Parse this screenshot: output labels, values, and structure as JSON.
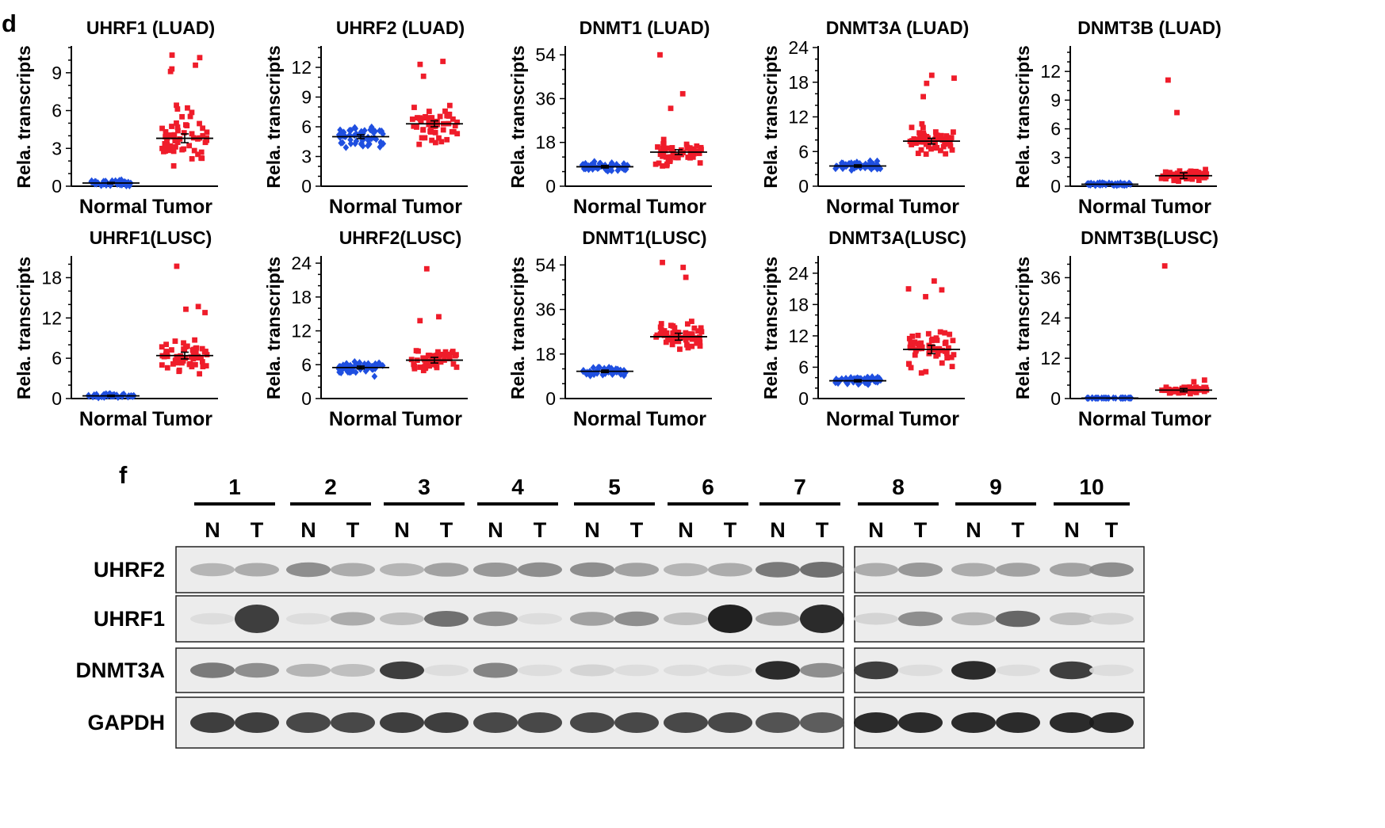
{
  "panels": {
    "d": {
      "label": "d"
    },
    "f": {
      "label": "f"
    }
  },
  "colors": {
    "normal": "#1f4fe0",
    "tumor": "#ef1c2a",
    "axis": "#000000"
  },
  "chart_data": [
    {
      "type": "scatter",
      "title": "UHRF1 (LUAD)",
      "ylabel": "Rela. transcripts",
      "categories": [
        "Normal",
        "Tumor"
      ],
      "ylim": [
        0,
        11
      ],
      "yticks": [
        0,
        3,
        6,
        9
      ],
      "series": [
        {
          "name": "Normal",
          "mean": 0.25,
          "sem": 0.05,
          "spread": 0.35,
          "n": 40,
          "seed": 11
        },
        {
          "name": "Tumor",
          "mean": 3.8,
          "sem": 0.35,
          "spread": 2.9,
          "n": 58,
          "seed": 12,
          "outliers": [
            10.4,
            10.2,
            9.6,
            9.3,
            9.1
          ]
        }
      ]
    },
    {
      "type": "scatter",
      "title": "UHRF2 (LUAD)",
      "ylabel": "Rela. transcripts",
      "categories": [
        "Normal",
        "Tumor"
      ],
      "ylim": [
        0,
        14
      ],
      "yticks": [
        0,
        3,
        6,
        9,
        12
      ],
      "series": [
        {
          "name": "Normal",
          "mean": 5.0,
          "sem": 0.2,
          "spread": 1.1,
          "n": 55,
          "seed": 21
        },
        {
          "name": "Tumor",
          "mean": 6.3,
          "sem": 0.3,
          "spread": 2.0,
          "n": 55,
          "seed": 22,
          "outliers": [
            12.6,
            12.3,
            11.1
          ]
        }
      ]
    },
    {
      "type": "scatter",
      "title": "DNMT1 (LUAD)",
      "ylabel": "Rela. transcripts",
      "categories": [
        "Normal",
        "Tumor"
      ],
      "ylim": [
        0,
        57
      ],
      "yticks": [
        0,
        18,
        36,
        54
      ],
      "series": [
        {
          "name": "Normal",
          "mean": 8.0,
          "sem": 0.5,
          "spread": 2.2,
          "n": 50,
          "seed": 31
        },
        {
          "name": "Tumor",
          "mean": 14.0,
          "sem": 1.0,
          "spread": 5.5,
          "n": 55,
          "seed": 32,
          "outliers": [
            54,
            38,
            32
          ]
        }
      ]
    },
    {
      "type": "scatter",
      "title": "DNMT3A (LUAD)",
      "ylabel": "Rela. transcripts",
      "categories": [
        "Normal",
        "Tumor"
      ],
      "ylim": [
        0,
        24
      ],
      "yticks": [
        0,
        6,
        12,
        18,
        24
      ],
      "series": [
        {
          "name": "Normal",
          "mean": 3.5,
          "sem": 0.2,
          "spread": 1.0,
          "n": 55,
          "seed": 41
        },
        {
          "name": "Tumor",
          "mean": 7.8,
          "sem": 0.5,
          "spread": 2.8,
          "n": 55,
          "seed": 42,
          "outliers": [
            19.2,
            18.7,
            17.8,
            15.5
          ]
        }
      ]
    },
    {
      "type": "scatter",
      "title": "DNMT3B (LUAD)",
      "ylabel": "Rela. transcripts",
      "categories": [
        "Normal",
        "Tumor"
      ],
      "ylim": [
        0,
        14.5
      ],
      "yticks": [
        0,
        3,
        6,
        9,
        12
      ],
      "series": [
        {
          "name": "Normal",
          "mean": 0.2,
          "sem": 0.03,
          "spread": 0.2,
          "n": 40,
          "seed": 51
        },
        {
          "name": "Tumor",
          "mean": 1.1,
          "sem": 0.3,
          "spread": 0.8,
          "n": 50,
          "seed": 52,
          "outliers": [
            11.1,
            7.7
          ]
        }
      ]
    },
    {
      "type": "scatter",
      "title": "UHRF1(LUSC)",
      "ylabel": "Rela. transcripts",
      "categories": [
        "Normal",
        "Tumor"
      ],
      "ylim": [
        0,
        21
      ],
      "yticks": [
        0,
        6,
        12,
        18
      ],
      "series": [
        {
          "name": "Normal",
          "mean": 0.4,
          "sem": 0.1,
          "spread": 0.4,
          "n": 40,
          "seed": 61
        },
        {
          "name": "Tumor",
          "mean": 6.4,
          "sem": 0.5,
          "spread": 2.6,
          "n": 55,
          "seed": 62,
          "outliers": [
            19.7,
            13.7,
            13.3,
            12.8
          ]
        }
      ]
    },
    {
      "type": "scatter",
      "title": "UHRF2(LUSC)",
      "ylabel": "Rela. transcripts",
      "categories": [
        "Normal",
        "Tumor"
      ],
      "ylim": [
        0,
        25
      ],
      "yticks": [
        0,
        6,
        12,
        18,
        24
      ],
      "series": [
        {
          "name": "Normal",
          "mean": 5.5,
          "sem": 0.25,
          "spread": 1.4,
          "n": 55,
          "seed": 71
        },
        {
          "name": "Tumor",
          "mean": 6.8,
          "sem": 0.5,
          "spread": 2.4,
          "n": 50,
          "seed": 72,
          "outliers": [
            23.0,
            14.5,
            13.8
          ]
        }
      ]
    },
    {
      "type": "scatter",
      "title": "DNMT1(LUSC)",
      "ylabel": "Rela. transcripts",
      "categories": [
        "Normal",
        "Tumor"
      ],
      "ylim": [
        0,
        57
      ],
      "yticks": [
        0,
        18,
        36,
        54
      ],
      "series": [
        {
          "name": "Normal",
          "mean": 11.0,
          "sem": 0.5,
          "spread": 2.5,
          "n": 50,
          "seed": 81
        },
        {
          "name": "Tumor",
          "mean": 25.0,
          "sem": 1.4,
          "spread": 7.0,
          "n": 55,
          "seed": 82,
          "outliers": [
            55,
            53,
            49
          ]
        }
      ]
    },
    {
      "type": "scatter",
      "title": "DNMT3A(LUSC)",
      "ylabel": "Rela. transcripts",
      "categories": [
        "Normal",
        "Tumor"
      ],
      "ylim": [
        0,
        27
      ],
      "yticks": [
        0,
        6,
        12,
        18,
        24
      ],
      "series": [
        {
          "name": "Normal",
          "mean": 3.4,
          "sem": 0.2,
          "spread": 0.9,
          "n": 55,
          "seed": 91
        },
        {
          "name": "Tumor",
          "mean": 9.4,
          "sem": 0.8,
          "spread": 4.3,
          "n": 55,
          "seed": 92,
          "outliers": [
            22.5,
            21.0,
            20.8,
            19.5
          ]
        }
      ]
    },
    {
      "type": "scatter",
      "title": "DNMT3B(LUSC)",
      "ylabel": "Rela. transcripts",
      "categories": [
        "Normal",
        "Tumor"
      ],
      "ylim": [
        0,
        42
      ],
      "yticks": [
        0,
        12,
        24,
        36
      ],
      "series": [
        {
          "name": "Normal",
          "mean": 0.15,
          "sem": 0.02,
          "spread": 0.1,
          "n": 40,
          "seed": 101
        },
        {
          "name": "Tumor",
          "mean": 2.5,
          "sem": 0.5,
          "spread": 1.3,
          "n": 50,
          "seed": 102,
          "outliers": [
            39.5,
            5.5,
            5.0
          ]
        }
      ]
    }
  ],
  "blot": {
    "groups": [
      "1",
      "2",
      "3",
      "4",
      "5",
      "6",
      "7",
      "8",
      "9",
      "10"
    ],
    "lane_labels": [
      "N",
      "T"
    ],
    "proteins": [
      "UHRF2",
      "UHRF1",
      "DNMT3A",
      "GAPDH"
    ],
    "band_intensity": {
      "UHRF2": [
        0.25,
        0.3,
        0.45,
        0.3,
        0.25,
        0.35,
        0.4,
        0.45,
        0.45,
        0.35,
        0.25,
        0.3,
        0.55,
        0.6,
        0.3,
        0.4,
        0.3,
        0.35,
        0.35,
        0.45
      ],
      "UHRF1": [
        0.05,
        0.85,
        0.05,
        0.3,
        0.2,
        0.6,
        0.45,
        0.05,
        0.35,
        0.45,
        0.2,
        1.0,
        0.35,
        0.95,
        0.1,
        0.45,
        0.25,
        0.65,
        0.2,
        0.1
      ],
      "DNMT3A": [
        0.55,
        0.45,
        0.25,
        0.2,
        0.85,
        0.05,
        0.5,
        0.05,
        0.1,
        0.05,
        0.05,
        0.05,
        0.95,
        0.45,
        0.85,
        0.05,
        0.95,
        0.05,
        0.85,
        0.05
      ],
      "GAPDH": [
        0.85,
        0.85,
        0.8,
        0.8,
        0.85,
        0.85,
        0.8,
        0.8,
        0.8,
        0.8,
        0.8,
        0.8,
        0.75,
        0.7,
        0.95,
        0.95,
        0.95,
        0.95,
        0.95,
        0.95
      ]
    }
  }
}
